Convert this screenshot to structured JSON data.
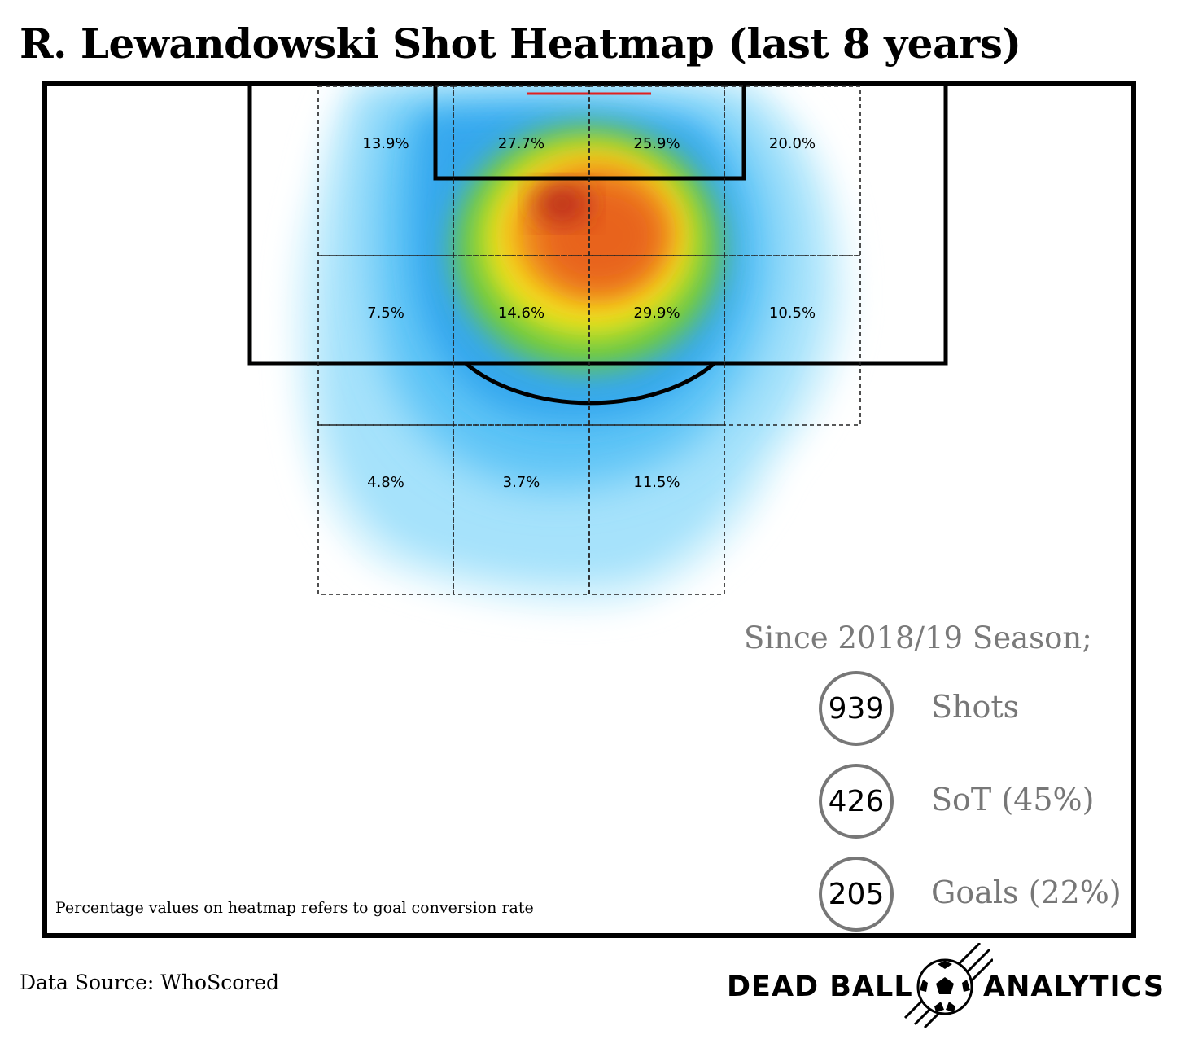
{
  "chart_data": {
    "type": "heatmap",
    "title": "R. Lewandowski Shot Heatmap (last 8 years)",
    "value_description": "Percentage values on heatmap refers to goal conversion rate",
    "zones": [
      {
        "row": 0,
        "col": 0,
        "label": "13.9%"
      },
      {
        "row": 0,
        "col": 1,
        "label": "27.7%"
      },
      {
        "row": 0,
        "col": 2,
        "label": "25.9%"
      },
      {
        "row": 0,
        "col": 3,
        "label": "20.0%"
      },
      {
        "row": 1,
        "col": 0,
        "label": "7.5%"
      },
      {
        "row": 1,
        "col": 1,
        "label": "14.6%"
      },
      {
        "row": 1,
        "col": 2,
        "label": "29.9%"
      },
      {
        "row": 1,
        "col": 3,
        "label": "10.5%"
      },
      {
        "row": 2,
        "col": 0,
        "label": "4.8%"
      },
      {
        "row": 2,
        "col": 1,
        "label": "3.7%"
      },
      {
        "row": 2,
        "col": 2,
        "label": "11.5%"
      }
    ],
    "colors": {
      "low": "#c9effc",
      "mid_blue": "#3fb0f2",
      "green": "#6ccb3a",
      "yellow": "#f5e51c",
      "orange": "#ef7a16",
      "high": "#b8261a",
      "goal_line": "#e02020"
    }
  },
  "stats": {
    "heading": "Since 2018/19 Season;",
    "items": [
      {
        "value": "939",
        "label": "Shots"
      },
      {
        "value": "426",
        "label": "SoT (45%)"
      },
      {
        "value": "205",
        "label": "Goals (22%)"
      }
    ]
  },
  "footer": {
    "source": "Data Source: WhoScored",
    "brand_left": "DEAD BALL",
    "brand_right": "ANALYTICS",
    "brand_icon": "soccer-ball-icon"
  }
}
